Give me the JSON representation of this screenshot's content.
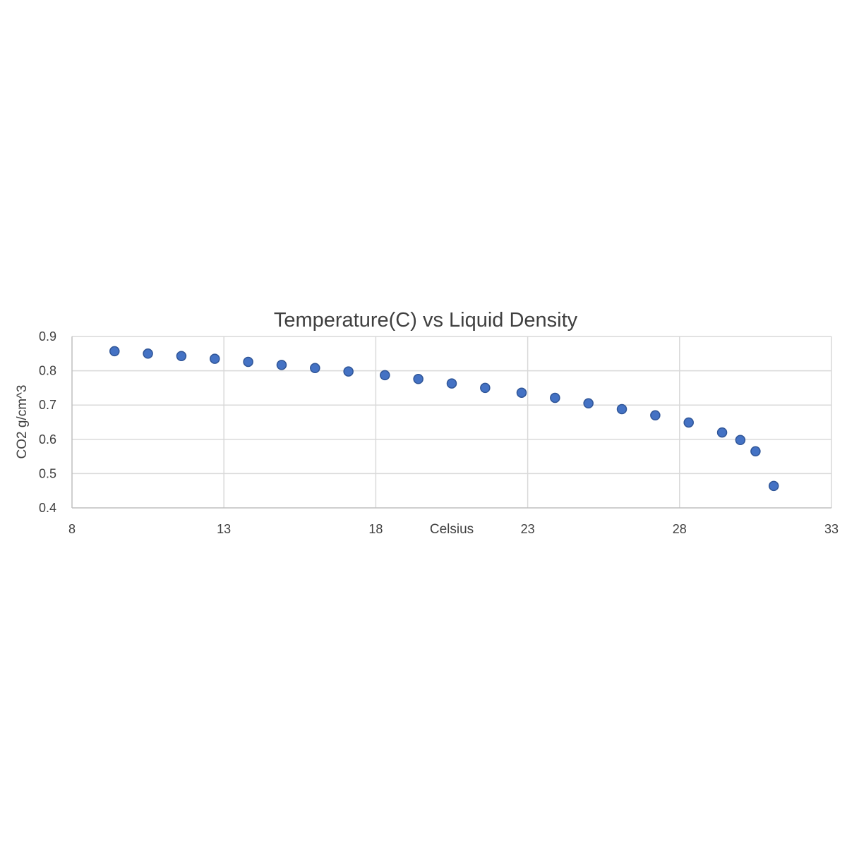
{
  "chart_data": {
    "type": "scatter",
    "title": "Temperature(C) vs Liquid Density",
    "xlabel": "Celsius",
    "ylabel": "CO2 g/cm^3",
    "xlim": [
      8,
      33
    ],
    "ylim": [
      0.4,
      0.9
    ],
    "xticks": [
      "8",
      "13",
      "18",
      "23",
      "28",
      "33"
    ],
    "yticks": [
      "0.4",
      "0.5",
      "0.6",
      "0.7",
      "0.8",
      "0.9"
    ],
    "grid": true,
    "legend": "none",
    "marker_color": "#4472C4",
    "marker_edge_color": "#2F5597",
    "series": [
      {
        "x": [
          9.4,
          10.5,
          11.6,
          12.7,
          13.8,
          14.9,
          16.0,
          17.1,
          18.3,
          19.4,
          20.5,
          21.6,
          22.8,
          23.9,
          25.0,
          26.1,
          27.2,
          28.3,
          29.4,
          30.0,
          30.5,
          31.1
        ],
        "y": [
          0.857,
          0.85,
          0.843,
          0.835,
          0.826,
          0.817,
          0.808,
          0.798,
          0.787,
          0.776,
          0.763,
          0.75,
          0.736,
          0.721,
          0.705,
          0.688,
          0.67,
          0.649,
          0.62,
          0.598,
          0.565,
          0.464
        ]
      }
    ]
  }
}
